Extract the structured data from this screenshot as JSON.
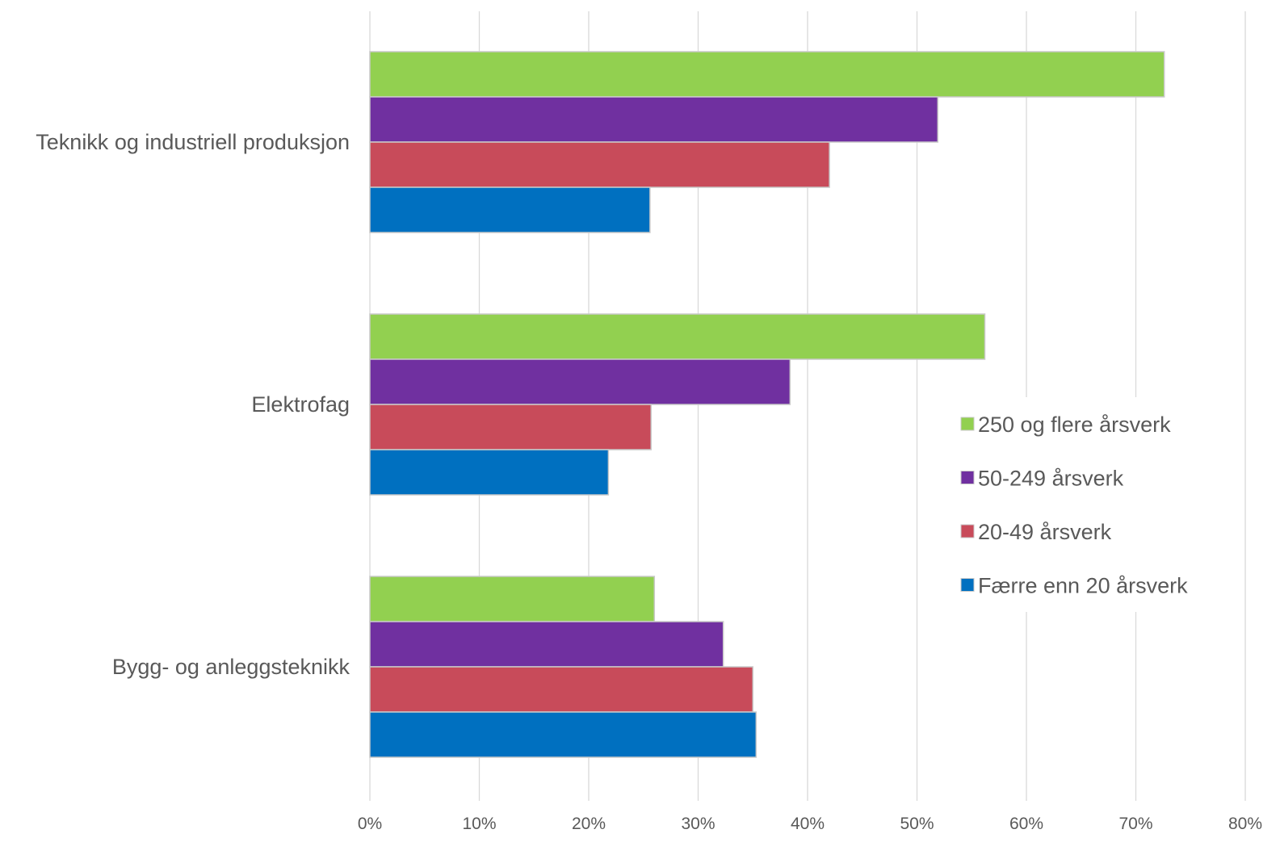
{
  "chart_data": {
    "type": "bar",
    "orientation": "horizontal",
    "categories": [
      "Teknikk og industriell produksjon",
      "Elektrofag",
      "Bygg- og anleggsteknikk"
    ],
    "series": [
      {
        "name": "250 og flere årsverk",
        "color": "#92d050",
        "values": [
          72.6,
          56.2,
          26.0
        ]
      },
      {
        "name": "50-249 årsverk",
        "color": "#7030a0",
        "values": [
          51.9,
          38.4,
          32.3
        ]
      },
      {
        "name": "20-49 årsverk",
        "color": "#c84b5a",
        "values": [
          42.0,
          25.7,
          35.0
        ]
      },
      {
        "name": "Færre enn 20 årsverk",
        "color": "#0070c0",
        "values": [
          25.6,
          21.8,
          35.3
        ]
      }
    ],
    "xlim": [
      0,
      80
    ],
    "x_ticks": [
      "0%",
      "10%",
      "20%",
      "30%",
      "40%",
      "50%",
      "60%",
      "70%",
      "80%"
    ],
    "grid": true,
    "legend_position": "right",
    "title": "",
    "xlabel": "",
    "ylabel": ""
  }
}
